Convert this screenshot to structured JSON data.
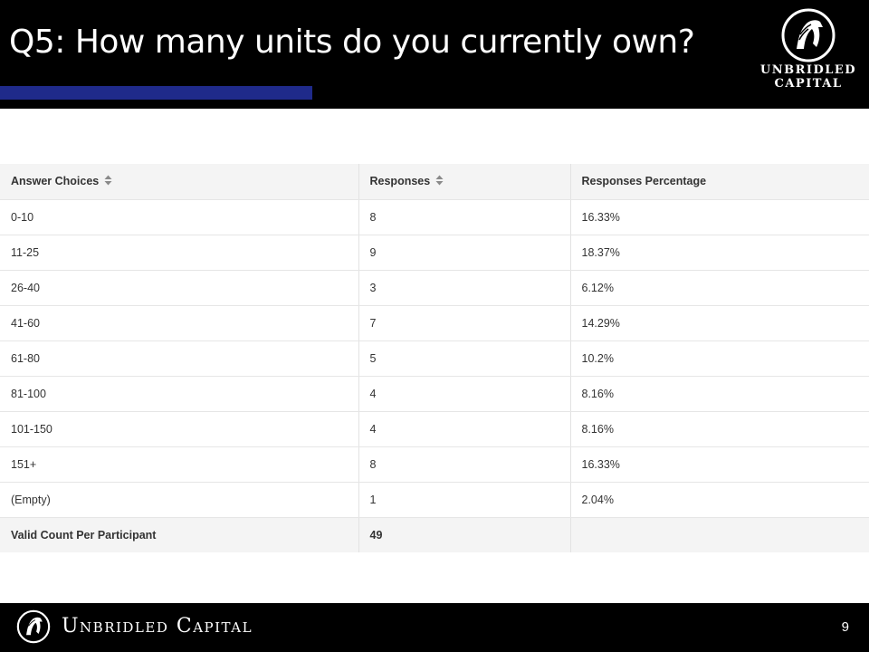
{
  "slide": {
    "title": "Q5: How many units do you currently own?",
    "page_number": "9",
    "accent_color": "#1f2a8a"
  },
  "logo": {
    "icon": "horse-head-icon",
    "line1": "UNBRIDLED",
    "line2": "CAPITAL"
  },
  "footer": {
    "icon": "horse-head-icon",
    "brand": "Unbridled Capital"
  },
  "table": {
    "headers": [
      "Answer Choices",
      "Responses",
      "Responses Percentage"
    ],
    "sortable": [
      true,
      true,
      false
    ],
    "rows": [
      [
        "0-10",
        "8",
        "16.33%"
      ],
      [
        "11-25",
        "9",
        "18.37%"
      ],
      [
        "26-40",
        "3",
        "6.12%"
      ],
      [
        "41-60",
        "7",
        "14.29%"
      ],
      [
        "61-80",
        "5",
        "10.2%"
      ],
      [
        "81-100",
        "4",
        "8.16%"
      ],
      [
        "101-150",
        "4",
        "8.16%"
      ],
      [
        "151+",
        "8",
        "16.33%"
      ],
      [
        "(Empty)",
        "1",
        "2.04%"
      ]
    ],
    "footer": [
      "Valid Count Per Participant",
      "49",
      ""
    ]
  }
}
